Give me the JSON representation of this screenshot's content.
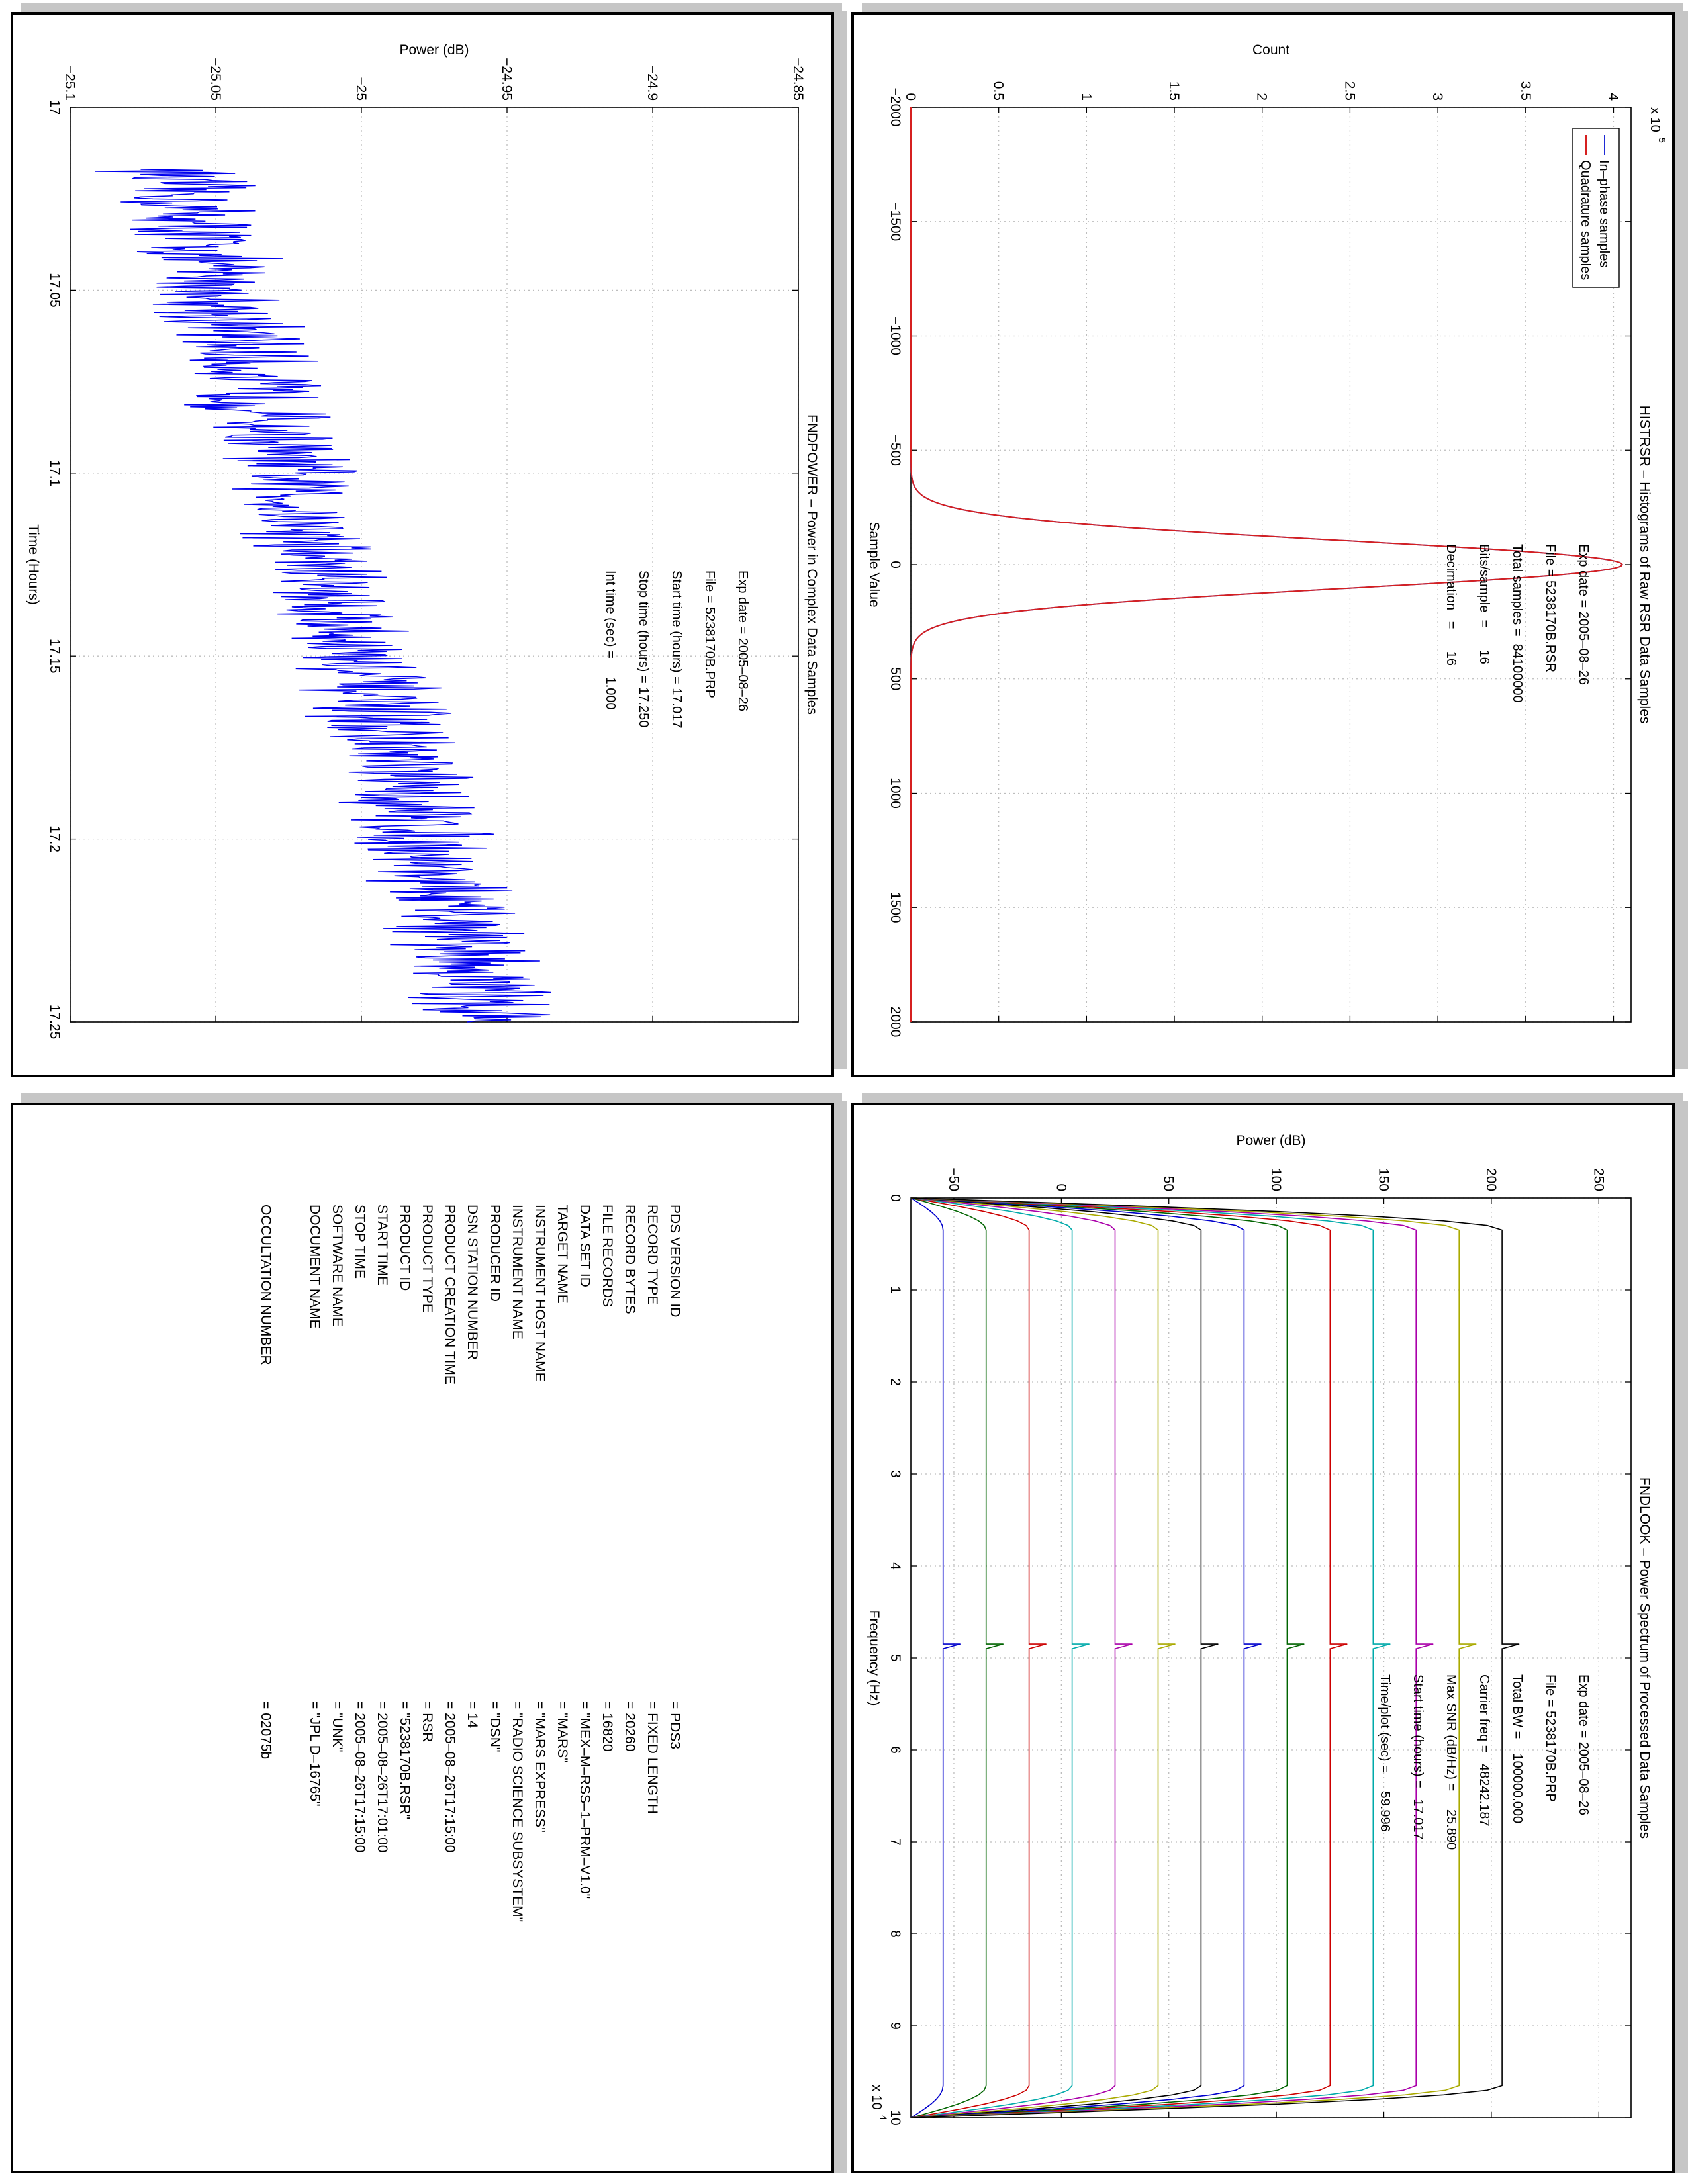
{
  "colors": {
    "frame": "#000000",
    "grid": "#bdbdbd",
    "shadow": "#c6c6c6"
  },
  "chart_data": [
    {
      "id": "fndpower",
      "type": "line",
      "title": "FNDPOWER – Power in Complex Data Samples",
      "xlabel": "Time (Hours)",
      "ylabel": "Power (dB)",
      "xlim": [
        17,
        17.25
      ],
      "ylim": [
        -25.1,
        -24.85
      ],
      "xticks": [
        "17",
        "17.05",
        "17.1",
        "17.15",
        "17.2",
        "17.25"
      ],
      "yticks": [
        "−25.1",
        "−25.05",
        "−25",
        "−24.95",
        "−24.9",
        "−24.85"
      ],
      "grid": true,
      "series": [
        {
          "color": "#0000ee",
          "trend_start": -25.065,
          "trend_end": -24.955,
          "noise_amplitude": 0.02,
          "x_start": 17.017,
          "x_end": 17.25
        }
      ],
      "annotations": [
        "Exp date = 2005–08–26",
        "File = 5238170B.PRP",
        "Start time (hours) = 17.017",
        "Stop time (hours) = 17.250",
        "Int time (sec) =     1.000"
      ]
    },
    {
      "id": "histrsr",
      "type": "line",
      "title": "HISTRSR – Histograms of Raw RSR Data Samples",
      "xlabel": "Sample Value",
      "ylabel": "Count",
      "exponent": "x 10",
      "exponent_power": "5",
      "xlim": [
        -2000,
        2000
      ],
      "ylim": [
        0,
        4.1
      ],
      "xticks": [
        "−2000",
        "−1500",
        "−1000",
        "−500",
        "0",
        "500",
        "1000",
        "1500",
        "2000"
      ],
      "yticks": [
        "0",
        "0.5",
        "1",
        "1.5",
        "2",
        "2.5",
        "3",
        "3.5",
        "4"
      ],
      "grid": true,
      "series": [
        {
          "name": "In–phase samples",
          "color": "#1f2bd6",
          "peak": 4.05,
          "sigma": 105
        },
        {
          "name": "Quadrature samples",
          "color": "#d62020",
          "peak": 4.05,
          "sigma": 105
        }
      ],
      "legend_position": "top-right",
      "annotations": [
        "Exp date = 2005–08–26",
        "File = 5238170B.RSR",
        "Total samples =  84100000",
        "Bits/sample  =      16",
        "Decimation   =      16"
      ]
    },
    {
      "id": "fndlook",
      "type": "line",
      "title": "FNDLOOK – Power Spectrum of Processed Data Samples",
      "xlabel": "Frequency (Hz)",
      "ylabel": "Power (dB)",
      "exponent": "x 10",
      "exponent_power": "4",
      "xlim": [
        0,
        10
      ],
      "ylim": [
        -70,
        265
      ],
      "xticks": [
        "0",
        "1",
        "2",
        "3",
        "4",
        "5",
        "6",
        "7",
        "8",
        "9",
        "10"
      ],
      "yticks": [
        "−50",
        "0",
        "50",
        "100",
        "150",
        "200",
        "250"
      ],
      "grid": true,
      "series": [
        {
          "color": "#0000cc",
          "level": -55
        },
        {
          "color": "#006400",
          "level": -35
        },
        {
          "color": "#cc0000",
          "level": -15
        },
        {
          "color": "#00aaaa",
          "level": 5
        },
        {
          "color": "#aa00aa",
          "level": 25
        },
        {
          "color": "#aaaa00",
          "level": 45
        },
        {
          "color": "#000000",
          "level": 65
        },
        {
          "color": "#0000cc",
          "level": 85
        },
        {
          "color": "#006400",
          "level": 105
        },
        {
          "color": "#cc0000",
          "level": 125
        },
        {
          "color": "#00aaaa",
          "level": 145
        },
        {
          "color": "#aa00aa",
          "level": 165
        },
        {
          "color": "#aaaa00",
          "level": 185
        },
        {
          "color": "#000000",
          "level": 205
        }
      ],
      "spike_x": 4.85,
      "annotations": [
        "Exp date = 2005–08–26",
        "File = 5238170B.PRP",
        "Total BW =    100000.000",
        "Carrier freq =   48242.187",
        "Max SNR (dB/Hz) =     25.890",
        "Start time (hours) =   17.017",
        "Time/plot (sec) =     59.996"
      ]
    }
  ],
  "label_table": {
    "rows": [
      {
        "key": "PDS VERSION ID",
        "value": "= PDS3"
      },
      {
        "key": "RECORD TYPE",
        "value": "= FIXED LENGTH"
      },
      {
        "key": "RECORD BYTES",
        "value": "= 20260"
      },
      {
        "key": "FILE RECORDS",
        "value": "= 16820"
      },
      {
        "key": "DATA SET ID",
        "value": "= \"MEX–M–RSS–1–PRM–V1.0\""
      },
      {
        "key": "TARGET NAME",
        "value": "= \"MARS\""
      },
      {
        "key": "INSTRUMENT HOST NAME",
        "value": "= \"MARS EXPRESS\""
      },
      {
        "key": "INSTRUMENT NAME",
        "value": "= \"RADIO SCIENCE SUBSYSTEM\""
      },
      {
        "key": "PRODUCER ID",
        "value": "= \"DSN\""
      },
      {
        "key": "DSN STATION NUMBER",
        "value": "= 14"
      },
      {
        "key": "PRODUCT CREATION TIME",
        "value": "= 2005–08–26T17:15:00"
      },
      {
        "key": "PRODUCT TYPE",
        "value": "= RSR"
      },
      {
        "key": "PRODUCT ID",
        "value": "= \"5238170B.RSR\""
      },
      {
        "key": "START TIME",
        "value": "= 2005–08–26T17:01:00"
      },
      {
        "key": "STOP TIME",
        "value": "= 2005–08–26T17:15:00"
      },
      {
        "key": "SOFTWARE NAME",
        "value": "= \"UNK\""
      },
      {
        "key": "DOCUMENT NAME",
        "value": "= \"JPL D–16765\""
      }
    ],
    "extra": {
      "key": "OCCULTATION NUMBER",
      "value": "= 02075b"
    }
  }
}
